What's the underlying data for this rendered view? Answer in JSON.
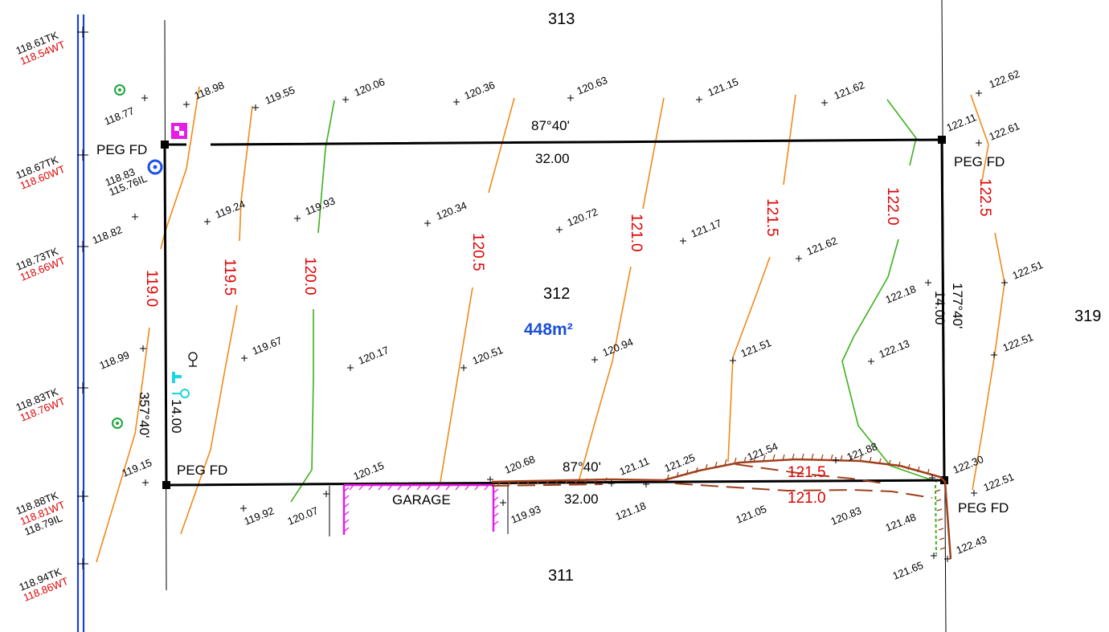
{
  "lots": {
    "north": "313",
    "south": "311",
    "east": "319",
    "subject": "312"
  },
  "area": "448m²",
  "pegs": {
    "nw": "PEG FD",
    "ne": "PEG FD",
    "sw": "PEG FD",
    "se": "PEG FD"
  },
  "bearings": {
    "north_bearing": "87°40'",
    "north_distance": "32.00",
    "south_bearing": "87°40'",
    "south_distance": "32.00",
    "west_bearing": "357°40'",
    "west_distance": "14.00",
    "east_bearing": "177°40'",
    "east_distance": "14.00"
  },
  "garage": "GARAGE",
  "contours": [
    "119.0",
    "119.5",
    "120.0",
    "120.5",
    "121.0",
    "121.5",
    "122.0",
    "122.5"
  ],
  "retaining_contours": [
    "121.5",
    "121.0"
  ],
  "kerb_levels": [
    {
      "tk": "118.61TK",
      "wt": "118.54WT"
    },
    {
      "tk": "118.67TK",
      "wt": "118.60WT"
    },
    {
      "tk": "118.73TK",
      "wt": "118.66WT"
    },
    {
      "tk": "118.83TK",
      "wt": "118.76WT"
    },
    {
      "tk": "118.88TK",
      "wt": "118.81WT",
      "il": "118.79IL"
    },
    {
      "tk": "118.94TK",
      "wt": "118.86WT"
    }
  ],
  "pit_levels": {
    "surface": "118.83",
    "invert": "115.76IL"
  },
  "spot_levels": [
    "118.77",
    "118.98",
    "119.55",
    "120.06",
    "120.36",
    "120.63",
    "121.15",
    "121.62",
    "122.62",
    "122.11",
    "122.61",
    "118.82",
    "119.24",
    "119.93",
    "120.34",
    "120.72",
    "121.17",
    "121.62",
    "122.51",
    "122.18",
    "118.99",
    "119.67",
    "120.17",
    "120.51",
    "120.94",
    "121.51",
    "122.13",
    "122.51",
    "119.15",
    "120.15",
    "120.68",
    "121.11",
    "121.25",
    "121.54",
    "121.88",
    "122.30",
    "122.51",
    "119.92",
    "120.07",
    "119.93",
    "121.18",
    "121.05",
    "120.83",
    "121.48",
    "122.43",
    "121.65"
  ]
}
